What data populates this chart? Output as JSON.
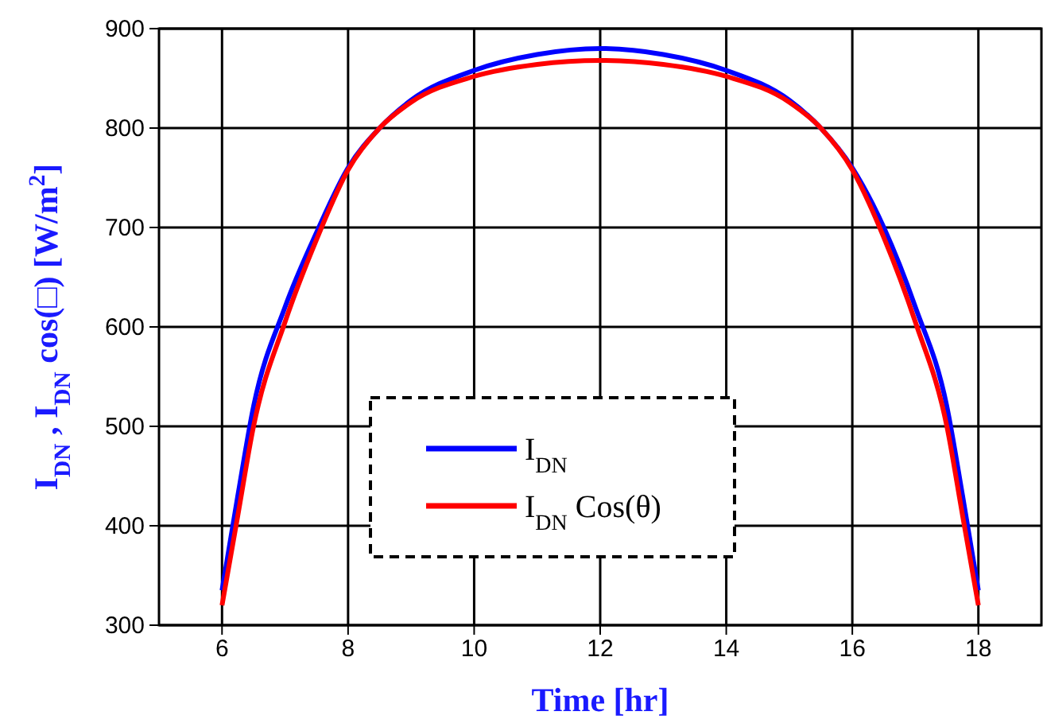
{
  "chart_data": {
    "type": "line",
    "xlabel": "Time [hr]",
    "ylabel": "I$_{DN}$ , I$_{DN}$ cos(□) [W/m$^{2}$]",
    "x": [
      6,
      6.25,
      6.5,
      7,
      7.5,
      8,
      8.5,
      9,
      10,
      11,
      12,
      13,
      14,
      15,
      15.5,
      16,
      16.5,
      17,
      17.5,
      17.75,
      18
    ],
    "series": [
      {
        "name": "I$_{DN}$",
        "color": "#0000ff",
        "values": [
          335,
          430,
          520,
          620,
          695,
          760,
          800,
          828,
          858,
          874,
          880,
          874,
          858,
          828,
          800,
          760,
          700,
          620,
          520,
          430,
          335
        ]
      },
      {
        "name": "I$_{DN}$ Cos(θ)",
        "color": "#ff0000",
        "values": [
          320,
          410,
          500,
          605,
          688,
          758,
          800,
          826,
          852,
          864,
          868,
          864,
          852,
          826,
          800,
          758,
          690,
          605,
          500,
          410,
          320
        ]
      }
    ],
    "xlim": [
      5,
      19
    ],
    "xticks": [
      6,
      8,
      10,
      12,
      14,
      16,
      18
    ],
    "ylim": [
      300,
      900
    ],
    "yticks": [
      300,
      400,
      500,
      600,
      700,
      800,
      900
    ],
    "grid": true,
    "legend": "bottom",
    "line_style": "solid",
    "marker": "none"
  }
}
